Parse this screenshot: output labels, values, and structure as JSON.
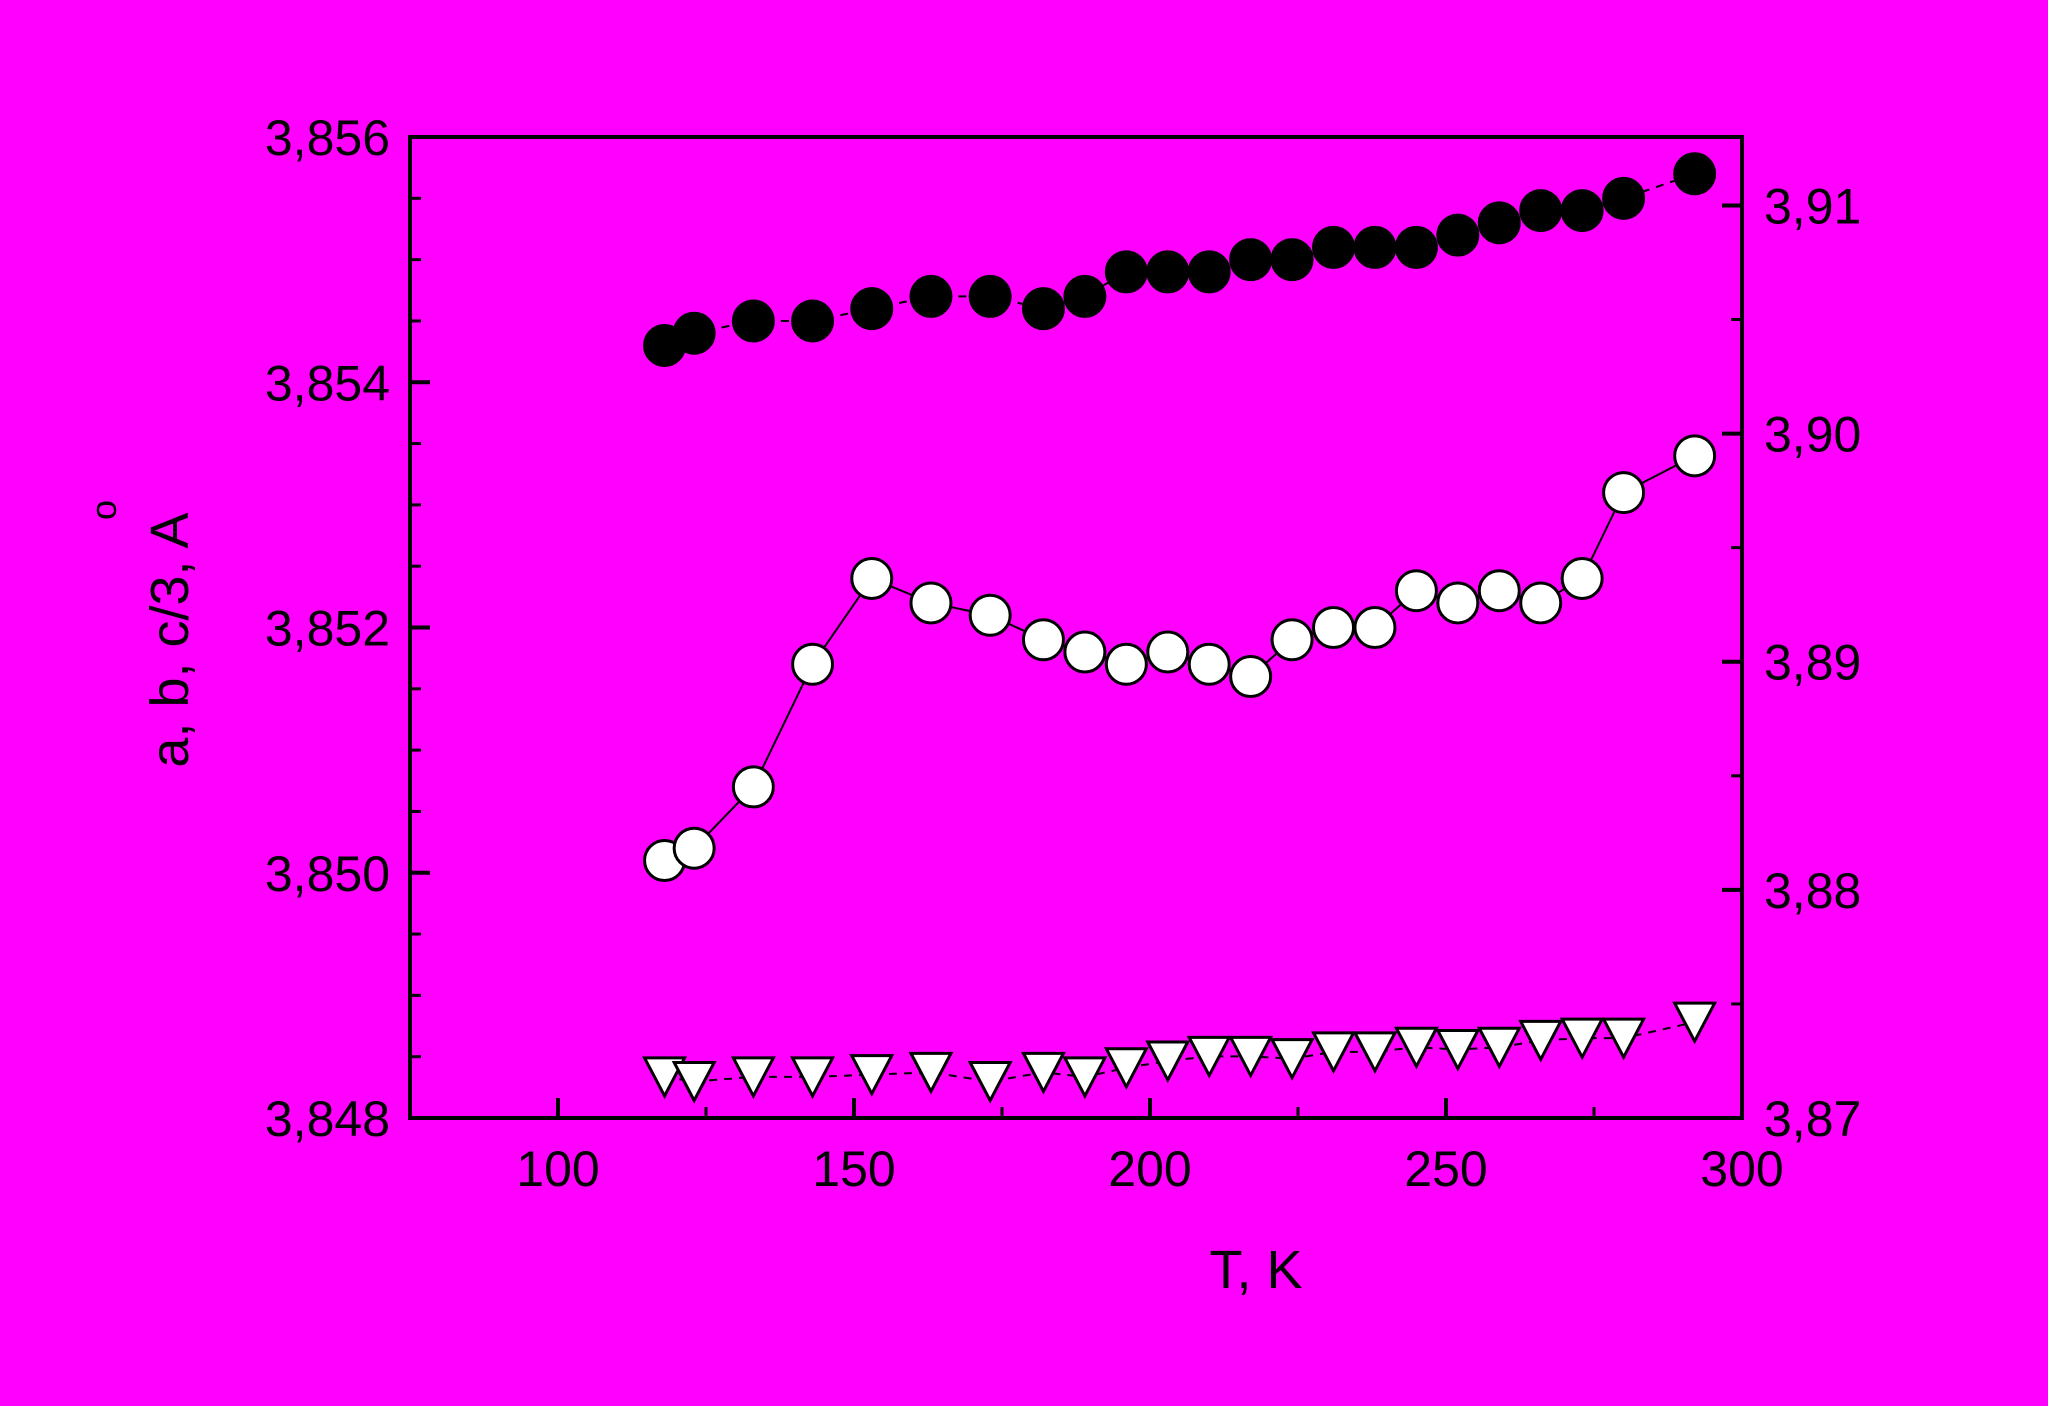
{
  "colors": {
    "background": "#ff00ff",
    "axis": "#000000",
    "filled_marker": "#000000",
    "open_marker": "#ffffff"
  },
  "chart_data": {
    "type": "scatter",
    "xlabel": "T, K",
    "ylabel": "a, b, c/3,  A",
    "ylabel_unit_mark": "o",
    "x_range": [
      75,
      300
    ],
    "y_left_range": [
      3.848,
      3.856
    ],
    "y_right_range": [
      3.87,
      3.913
    ],
    "x_ticks": [
      {
        "value": 100,
        "label": "100"
      },
      {
        "value": 150,
        "label": "150"
      },
      {
        "value": 200,
        "label": "200"
      },
      {
        "value": 250,
        "label": "250"
      },
      {
        "value": 300,
        "label": "300"
      }
    ],
    "y_left_ticks": [
      {
        "value": 3.848,
        "label": "3,848"
      },
      {
        "value": 3.85,
        "label": "3,850"
      },
      {
        "value": 3.852,
        "label": "3,852"
      },
      {
        "value": 3.854,
        "label": "3,854"
      },
      {
        "value": 3.856,
        "label": "3,856"
      }
    ],
    "y_right_ticks": [
      {
        "value": 3.87,
        "label": "3,87"
      },
      {
        "value": 3.88,
        "label": "3,88"
      },
      {
        "value": 3.89,
        "label": "3,89"
      },
      {
        "value": 3.9,
        "label": "3,90"
      },
      {
        "value": 3.91,
        "label": "3,91"
      }
    ],
    "series": [
      {
        "axis": "left",
        "marker": "circle",
        "fill": "filled",
        "line": "dashed",
        "x": [
          118,
          123,
          133,
          143,
          153,
          163,
          173,
          182,
          189,
          196,
          203,
          210,
          217,
          224,
          231,
          238,
          245,
          252,
          259,
          266,
          273,
          280,
          292
        ],
        "y": [
          3.8543,
          3.8544,
          3.8545,
          3.8545,
          3.8546,
          3.8547,
          3.8547,
          3.8546,
          3.8547,
          3.8549,
          3.8549,
          3.8549,
          3.855,
          3.855,
          3.8551,
          3.8551,
          3.8551,
          3.8552,
          3.8553,
          3.8554,
          3.8554,
          3.8555,
          3.8557
        ]
      },
      {
        "axis": "left",
        "marker": "circle",
        "fill": "open",
        "line": "solid",
        "x": [
          118,
          123,
          133,
          143,
          153,
          163,
          173,
          182,
          189,
          196,
          203,
          210,
          217,
          224,
          231,
          238,
          245,
          252,
          259,
          266,
          273,
          280,
          292
        ],
        "y": [
          3.8501,
          3.8502,
          3.8507,
          3.8517,
          3.8524,
          3.8522,
          3.8521,
          3.8519,
          3.8518,
          3.8517,
          3.8518,
          3.8517,
          3.8516,
          3.8519,
          3.852,
          3.852,
          3.8523,
          3.8522,
          3.8523,
          3.8522,
          3.8524,
          3.8531,
          3.8534
        ]
      },
      {
        "axis": "right",
        "marker": "triangle-down",
        "fill": "open",
        "line": "dashed",
        "x": [
          118,
          123,
          133,
          143,
          153,
          163,
          173,
          182,
          189,
          196,
          203,
          210,
          217,
          224,
          231,
          238,
          245,
          252,
          259,
          266,
          273,
          280,
          292
        ],
        "y": [
          3.8718,
          3.8716,
          3.8718,
          3.8718,
          3.8719,
          3.872,
          3.8716,
          3.872,
          3.8718,
          3.8722,
          3.8725,
          3.8727,
          3.8727,
          3.8726,
          3.8729,
          3.8729,
          3.8731,
          3.873,
          3.8731,
          3.8734,
          3.8735,
          3.8735,
          3.8742
        ]
      }
    ]
  }
}
